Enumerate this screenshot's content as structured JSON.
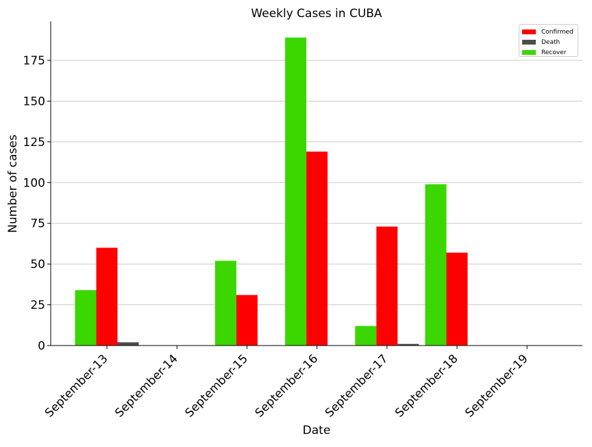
{
  "chart_data": {
    "type": "bar",
    "title": "Weekly Cases in CUBA",
    "xlabel": "Date",
    "ylabel": "Number of cases",
    "categories": [
      "September-13",
      "September-14",
      "September-15",
      "September-16",
      "September-17",
      "September-18",
      "September-19"
    ],
    "series": [
      {
        "name": "Recover",
        "color": "#3cd600",
        "values": [
          34,
          0,
          52,
          189,
          12,
          99,
          0
        ]
      },
      {
        "name": "Confirmed",
        "color": "#ff0000",
        "values": [
          60,
          0,
          31,
          119,
          73,
          57,
          0
        ]
      },
      {
        "name": "Death",
        "color": "#4d4d4d",
        "values": [
          2,
          0,
          0,
          0,
          1,
          0,
          0
        ]
      }
    ],
    "legend_order": [
      "Confirmed",
      "Death",
      "Recover"
    ],
    "yticks": [
      0,
      25,
      50,
      75,
      100,
      125,
      150,
      175
    ],
    "ylim": [
      0,
      199
    ],
    "grid": "horizontal",
    "legend_position": "top-right"
  }
}
